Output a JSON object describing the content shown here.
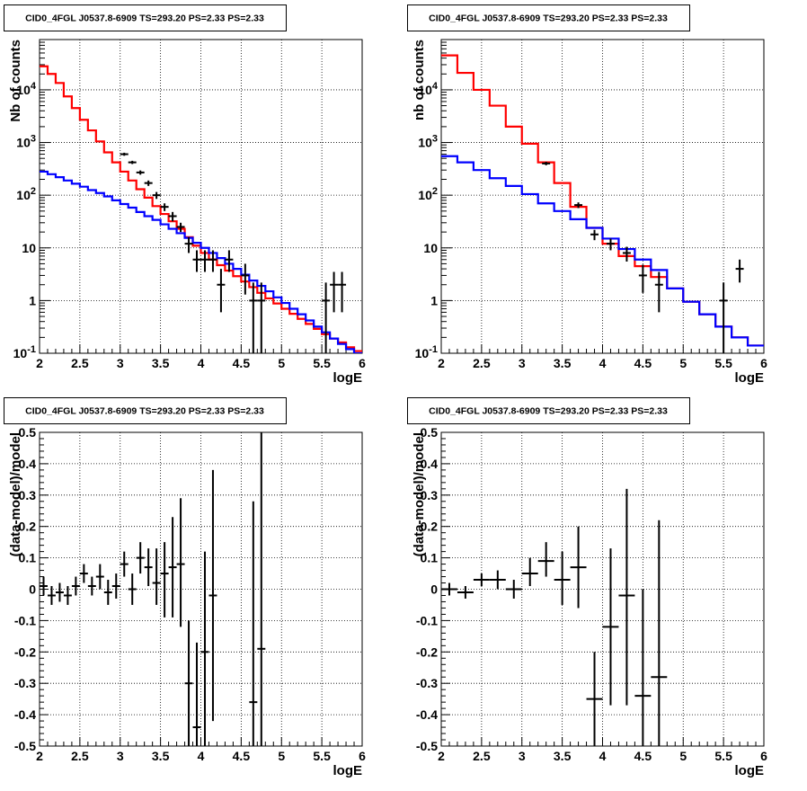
{
  "panels": [
    {
      "title": "CID0_4FGL J0537.8-6909 TS=293.20 PS=2.33 PS=2.33",
      "xlabel": "logE",
      "ylabel": "Nb of counts",
      "chart_data": {
        "type": "line",
        "log_y": true,
        "xlim": [
          2,
          6
        ],
        "ylim": [
          0.1,
          90000
        ],
        "grid": true,
        "x_ticks": [
          "2",
          "2.5",
          "3",
          "3.5",
          "4",
          "4.5",
          "5",
          "5.5",
          "6"
        ],
        "y_ticks": [
          "10^-1",
          "1",
          "10",
          "10^2",
          "10^3",
          "10^4"
        ],
        "bin_edges": [
          2.0,
          2.1,
          2.2,
          2.3,
          2.4,
          2.5,
          2.6,
          2.7,
          2.8,
          2.9,
          3.0,
          3.1,
          3.2,
          3.3,
          3.4,
          3.5,
          3.6,
          3.7,
          3.8,
          3.9,
          4.0,
          4.1,
          4.2,
          4.3,
          4.4,
          4.5,
          4.6,
          4.7,
          4.8,
          4.9,
          5.0,
          5.1,
          5.2,
          5.3,
          5.4,
          5.5,
          5.6,
          5.7,
          5.8,
          5.9,
          6.0
        ],
        "series": [
          {
            "style": "histogram",
            "color": "#ff0000",
            "values": [
              28000,
              20000,
              13500,
              7500,
              4500,
              2700,
              1700,
              1050,
              650,
              420,
              280,
              190,
              130,
              90,
              62,
              44,
              32,
              23,
              16,
              11,
              8,
              6,
              4.7,
              3.7,
              2.9,
              2.3,
              1.8,
              1.4,
              1.1,
              0.88,
              0.7,
              0.56,
              0.45,
              0.36,
              0.29,
              0.23,
              0.19,
              0.16,
              0.13,
              0.11
            ]
          },
          {
            "style": "histogram",
            "color": "#0000ff",
            "values": [
              280,
              250,
              220,
              190,
              165,
              145,
              125,
              110,
              95,
              80,
              68,
              58,
              48,
              40,
              34,
              28,
              23,
              19,
              15.5,
              12.5,
              10,
              8,
              6.4,
              5,
              4,
              3.1,
              2.4,
              1.9,
              1.5,
              1.15,
              0.9,
              0.7,
              0.55,
              0.42,
              0.32,
              0.25,
              0.19,
              0.15,
              0.12,
              0.1
            ]
          },
          {
            "style": "points",
            "color": "#000000",
            "points": [
              {
                "x": 3.05,
                "y": 600,
                "lo": 560,
                "hi": 640
              },
              {
                "x": 3.15,
                "y": 420,
                "lo": 390,
                "hi": 450
              },
              {
                "x": 3.25,
                "y": 270,
                "lo": 245,
                "hi": 295
              },
              {
                "x": 3.35,
                "y": 170,
                "lo": 150,
                "hi": 190
              },
              {
                "x": 3.45,
                "y": 100,
                "lo": 85,
                "hi": 115
              },
              {
                "x": 3.55,
                "y": 60,
                "lo": 50,
                "hi": 70
              },
              {
                "x": 3.65,
                "y": 40,
                "lo": 32,
                "hi": 48
              },
              {
                "x": 3.75,
                "y": 25,
                "lo": 20,
                "hi": 30
              },
              {
                "x": 3.85,
                "y": 12,
                "lo": 8,
                "hi": 16
              },
              {
                "x": 3.95,
                "y": 6,
                "lo": 3.5,
                "hi": 9
              },
              {
                "x": 4.05,
                "y": 6,
                "lo": 3.5,
                "hi": 9
              },
              {
                "x": 4.15,
                "y": 6,
                "lo": 3.5,
                "hi": 9
              },
              {
                "x": 4.25,
                "y": 2,
                "lo": 0.6,
                "hi": 4
              },
              {
                "x": 4.35,
                "y": 6,
                "lo": 3.5,
                "hi": 9
              },
              {
                "x": 4.55,
                "y": 3,
                "lo": 1.3,
                "hi": 5
              },
              {
                "x": 4.65,
                "y": 1,
                "lo": 0.1,
                "hi": 2.2
              },
              {
                "x": 4.75,
                "y": 1,
                "lo": 0.1,
                "hi": 2.2
              },
              {
                "x": 5.55,
                "y": 1,
                "lo": 0.1,
                "hi": 2.2
              },
              {
                "x": 5.65,
                "y": 2,
                "lo": 0.6,
                "hi": 3.5
              },
              {
                "x": 5.75,
                "y": 2,
                "lo": 0.6,
                "hi": 3.5
              }
            ]
          }
        ]
      }
    },
    {
      "title": "CID0_4FGL J0537.8-6909 TS=293.20 PS=2.33 PS=2.33",
      "xlabel": "logE",
      "ylabel": "nb of counts",
      "chart_data": {
        "type": "line",
        "log_y": true,
        "xlim": [
          2,
          6
        ],
        "ylim": [
          0.1,
          90000
        ],
        "grid": true,
        "x_ticks": [
          "2",
          "2.5",
          "3",
          "3.5",
          "4",
          "4.5",
          "5",
          "5.5",
          "6"
        ],
        "y_ticks": [
          "10^-1",
          "1",
          "10",
          "10^2",
          "10^3",
          "10^4"
        ],
        "bin_edges": [
          2.0,
          2.2,
          2.4,
          2.6,
          2.8,
          3.0,
          3.2,
          3.4,
          3.6,
          3.8,
          4.0,
          4.2,
          4.4,
          4.6,
          4.8,
          5.0,
          5.2,
          5.4,
          5.6,
          5.8,
          6.0
        ],
        "series": [
          {
            "style": "histogram",
            "color": "#ff0000",
            "values": [
              45000,
              21000,
              10000,
              5000,
              2000,
              950,
              420,
              170,
              60,
              24,
              12,
              7,
              4.5,
              2.8,
              1.7,
              0.95,
              0.55,
              0.32,
              0.2,
              0.14
            ]
          },
          {
            "style": "histogram",
            "color": "#0000ff",
            "values": [
              550,
              420,
              300,
              210,
              150,
              105,
              70,
              50,
              35,
              24,
              15,
              9.5,
              6,
              3.8,
              1.7,
              0.95,
              0.55,
              0.32,
              0.2,
              0.14
            ]
          },
          {
            "style": "points",
            "color": "#000000",
            "points": [
              {
                "x": 3.3,
                "y": 400,
                "lo": 370,
                "hi": 430
              },
              {
                "x": 3.7,
                "y": 65,
                "lo": 57,
                "hi": 73
              },
              {
                "x": 3.9,
                "y": 18,
                "lo": 14,
                "hi": 22
              },
              {
                "x": 4.1,
                "y": 12,
                "lo": 9,
                "hi": 15
              },
              {
                "x": 4.3,
                "y": 8,
                "lo": 5.5,
                "hi": 10.5
              },
              {
                "x": 4.5,
                "y": 3,
                "lo": 1.4,
                "hi": 4.8
              },
              {
                "x": 4.7,
                "y": 2,
                "lo": 0.6,
                "hi": 3.5
              },
              {
                "x": 5.5,
                "y": 1,
                "lo": 0.1,
                "hi": 2.2
              },
              {
                "x": 5.7,
                "y": 4,
                "lo": 2.2,
                "hi": 6
              }
            ]
          }
        ]
      }
    },
    {
      "title": "CID0_4FGL J0537.8-6909 TS=293.20 PS=2.33 PS=2.33",
      "xlabel": "logE",
      "ylabel": "(data-model)/model",
      "chart_data": {
        "type": "scatter",
        "log_y": false,
        "xlim": [
          2,
          6
        ],
        "ylim": [
          -0.5,
          0.5
        ],
        "grid": true,
        "x_ticks": [
          "2",
          "2.5",
          "3",
          "3.5",
          "4",
          "4.5",
          "5",
          "5.5",
          "6"
        ],
        "y_ticks": [
          "-0.5",
          "-0.4",
          "-0.3",
          "-0.2",
          "-0.1",
          "0",
          "0.1",
          "0.2",
          "0.3",
          "0.4",
          "0.5"
        ],
        "series": [
          {
            "style": "points",
            "color": "#000000",
            "points": [
              {
                "x": 2.05,
                "y": 0.01,
                "lo": -0.02,
                "hi": 0.04,
                "xerr": 0.05
              },
              {
                "x": 2.15,
                "y": -0.02,
                "lo": -0.05,
                "hi": 0.01,
                "xerr": 0.05
              },
              {
                "x": 2.25,
                "y": -0.01,
                "lo": -0.04,
                "hi": 0.02,
                "xerr": 0.05
              },
              {
                "x": 2.35,
                "y": -0.02,
                "lo": -0.05,
                "hi": 0.01,
                "xerr": 0.05
              },
              {
                "x": 2.45,
                "y": 0.01,
                "lo": -0.02,
                "hi": 0.04,
                "xerr": 0.05
              },
              {
                "x": 2.55,
                "y": 0.05,
                "lo": 0.02,
                "hi": 0.08,
                "xerr": 0.05
              },
              {
                "x": 2.65,
                "y": 0.01,
                "lo": -0.02,
                "hi": 0.04,
                "xerr": 0.05
              },
              {
                "x": 2.75,
                "y": 0.04,
                "lo": 0.0,
                "hi": 0.08,
                "xerr": 0.05
              },
              {
                "x": 2.85,
                "y": -0.01,
                "lo": -0.05,
                "hi": 0.03,
                "xerr": 0.05
              },
              {
                "x": 2.95,
                "y": 0.01,
                "lo": -0.03,
                "hi": 0.05,
                "xerr": 0.05
              },
              {
                "x": 3.05,
                "y": 0.08,
                "lo": 0.04,
                "hi": 0.12,
                "xerr": 0.05
              },
              {
                "x": 3.15,
                "y": 0.0,
                "lo": -0.05,
                "hi": 0.05,
                "xerr": 0.05
              },
              {
                "x": 3.25,
                "y": 0.1,
                "lo": 0.05,
                "hi": 0.15,
                "xerr": 0.05
              },
              {
                "x": 3.35,
                "y": 0.07,
                "lo": 0.01,
                "hi": 0.13,
                "xerr": 0.05
              },
              {
                "x": 3.45,
                "y": 0.02,
                "lo": -0.05,
                "hi": 0.13,
                "xerr": 0.05
              },
              {
                "x": 3.55,
                "y": 0.05,
                "lo": -0.09,
                "hi": 0.15,
                "xerr": 0.05
              },
              {
                "x": 3.65,
                "y": 0.07,
                "lo": -0.09,
                "hi": 0.23,
                "xerr": 0.05
              },
              {
                "x": 3.75,
                "y": 0.08,
                "lo": -0.12,
                "hi": 0.29,
                "xerr": 0.05
              },
              {
                "x": 3.85,
                "y": -0.3,
                "lo": -0.5,
                "hi": -0.1,
                "xerr": 0.05
              },
              {
                "x": 3.95,
                "y": -0.44,
                "lo": -0.5,
                "hi": -0.17,
                "xerr": 0.05
              },
              {
                "x": 4.05,
                "y": -0.2,
                "lo": -0.5,
                "hi": 0.12,
                "xerr": 0.05
              },
              {
                "x": 4.15,
                "y": -0.02,
                "lo": -0.42,
                "hi": 0.38,
                "xerr": 0.05
              },
              {
                "x": 4.65,
                "y": -0.36,
                "lo": -0.5,
                "hi": 0.28,
                "xerr": 0.05
              },
              {
                "x": 4.75,
                "y": -0.19,
                "lo": -0.5,
                "hi": 0.5,
                "xerr": 0.05
              }
            ]
          }
        ]
      }
    },
    {
      "title": "CID0_4FGL J0537.8-6909 TS=293.20 PS=2.33 PS=2.33",
      "xlabel": "logE",
      "ylabel": "(data-model)/model",
      "chart_data": {
        "type": "scatter",
        "log_y": false,
        "xlim": [
          2,
          6
        ],
        "ylim": [
          -0.5,
          0.5
        ],
        "grid": true,
        "x_ticks": [
          "2",
          "2.5",
          "3",
          "3.5",
          "4",
          "4.5",
          "5",
          "5.5",
          "6"
        ],
        "y_ticks": [
          "-0.5",
          "-0.4",
          "-0.3",
          "-0.2",
          "-0.1",
          "0",
          "0.1",
          "0.2",
          "0.3",
          "0.4",
          "0.5"
        ],
        "series": [
          {
            "style": "points",
            "color": "#000000",
            "points": [
              {
                "x": 2.1,
                "y": 0.0,
                "lo": -0.02,
                "hi": 0.02,
                "xerr": 0.1
              },
              {
                "x": 2.3,
                "y": -0.01,
                "lo": -0.03,
                "hi": 0.01,
                "xerr": 0.1
              },
              {
                "x": 2.5,
                "y": 0.03,
                "lo": 0.01,
                "hi": 0.05,
                "xerr": 0.1
              },
              {
                "x": 2.7,
                "y": 0.03,
                "lo": 0.0,
                "hi": 0.06,
                "xerr": 0.1
              },
              {
                "x": 2.9,
                "y": 0.0,
                "lo": -0.03,
                "hi": 0.03,
                "xerr": 0.1
              },
              {
                "x": 3.1,
                "y": 0.05,
                "lo": 0.01,
                "hi": 0.1,
                "xerr": 0.1
              },
              {
                "x": 3.3,
                "y": 0.09,
                "lo": 0.04,
                "hi": 0.15,
                "xerr": 0.1
              },
              {
                "x": 3.5,
                "y": 0.03,
                "lo": -0.05,
                "hi": 0.12,
                "xerr": 0.1
              },
              {
                "x": 3.7,
                "y": 0.07,
                "lo": -0.06,
                "hi": 0.2,
                "xerr": 0.1
              },
              {
                "x": 3.9,
                "y": -0.35,
                "lo": -0.5,
                "hi": -0.2,
                "xerr": 0.1
              },
              {
                "x": 4.1,
                "y": -0.12,
                "lo": -0.37,
                "hi": 0.13,
                "xerr": 0.1
              },
              {
                "x": 4.3,
                "y": -0.02,
                "lo": -0.37,
                "hi": 0.32,
                "xerr": 0.1
              },
              {
                "x": 4.5,
                "y": -0.34,
                "lo": -0.5,
                "hi": 0.0,
                "xerr": 0.1
              },
              {
                "x": 4.7,
                "y": -0.28,
                "lo": -0.5,
                "hi": 0.22,
                "xerr": 0.1
              }
            ]
          }
        ]
      }
    }
  ]
}
